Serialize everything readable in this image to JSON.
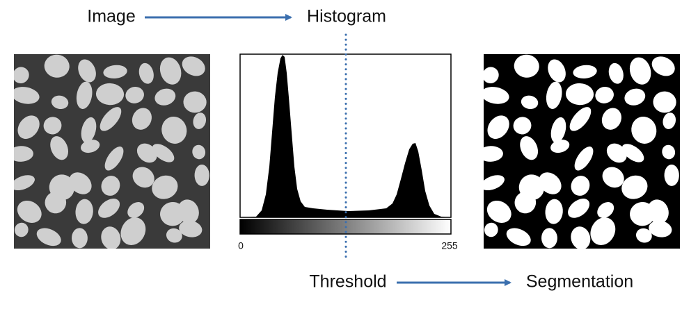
{
  "labels": {
    "image": "Image",
    "histogram": "Histogram",
    "threshold": "Threshold",
    "segmentation": "Segmentation"
  },
  "histogram": {
    "axis_min": 0,
    "axis_max": 255
  }
}
